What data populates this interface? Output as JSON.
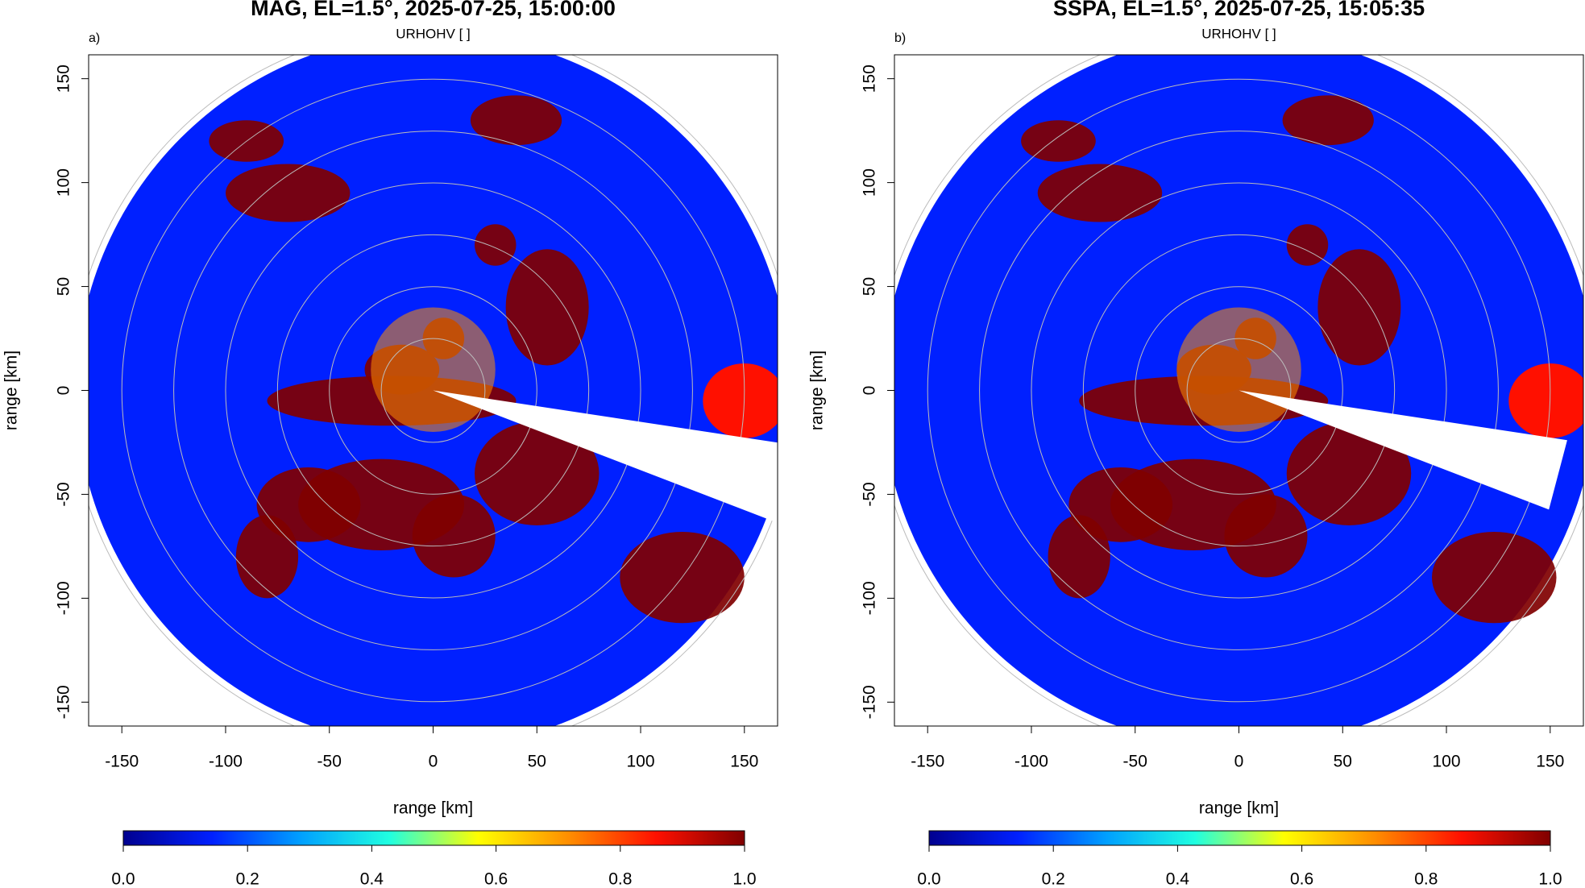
{
  "chart_data": [
    {
      "type": "heatmap",
      "panel_label": "a)",
      "title": "MAG, EL=1.5°, 2025-07-25, 15:00:00",
      "subtitle": "URHOHV [ ]",
      "xlabel": "range [km]",
      "ylabel": "range [km]",
      "xlim": [
        -166,
        166
      ],
      "ylim": [
        -161.5,
        161.5
      ],
      "xticks": [
        -150,
        -100,
        -50,
        0,
        50,
        100,
        150
      ],
      "yticks": [
        -150,
        -100,
        -50,
        0,
        50,
        100,
        150
      ],
      "colorbar": {
        "lim": [
          0,
          1
        ],
        "ticks": [
          {
            "value": 0,
            "label": "0.0"
          },
          0.2,
          0.4,
          0.6,
          0.8,
          {
            "value": 1,
            "label": "1.0"
          }
        ],
        "colors": [
          "#00008f",
          "#0020ff",
          "#00a0ff",
          "#20ffe0",
          "#ffff00",
          "#ff9000",
          "#ff1000",
          "#800000"
        ]
      }
    },
    {
      "type": "heatmap",
      "panel_label": "b)",
      "title": "SSPA, EL=1.5°, 2025-07-25, 15:05:35",
      "subtitle": "URHOHV [ ]",
      "xlabel": "range [km]",
      "ylabel": "range [km]",
      "xlim": [
        -166,
        166
      ],
      "ylim": [
        -161.5,
        161.5
      ],
      "xticks": [
        -150,
        -100,
        -50,
        0,
        50,
        100,
        150
      ],
      "yticks": [
        -150,
        -100,
        -50,
        0,
        50,
        100,
        150
      ],
      "colorbar": {
        "lim": [
          0,
          1
        ],
        "ticks": [
          {
            "value": 0,
            "label": "0.0"
          },
          0.2,
          0.4,
          0.6,
          0.8,
          {
            "value": 1,
            "label": "1.0"
          }
        ],
        "colors": [
          "#00008f",
          "#0020ff",
          "#00a0ff",
          "#20ffe0",
          "#ffff00",
          "#ff9000",
          "#ff1000",
          "#800000"
        ]
      }
    }
  ]
}
